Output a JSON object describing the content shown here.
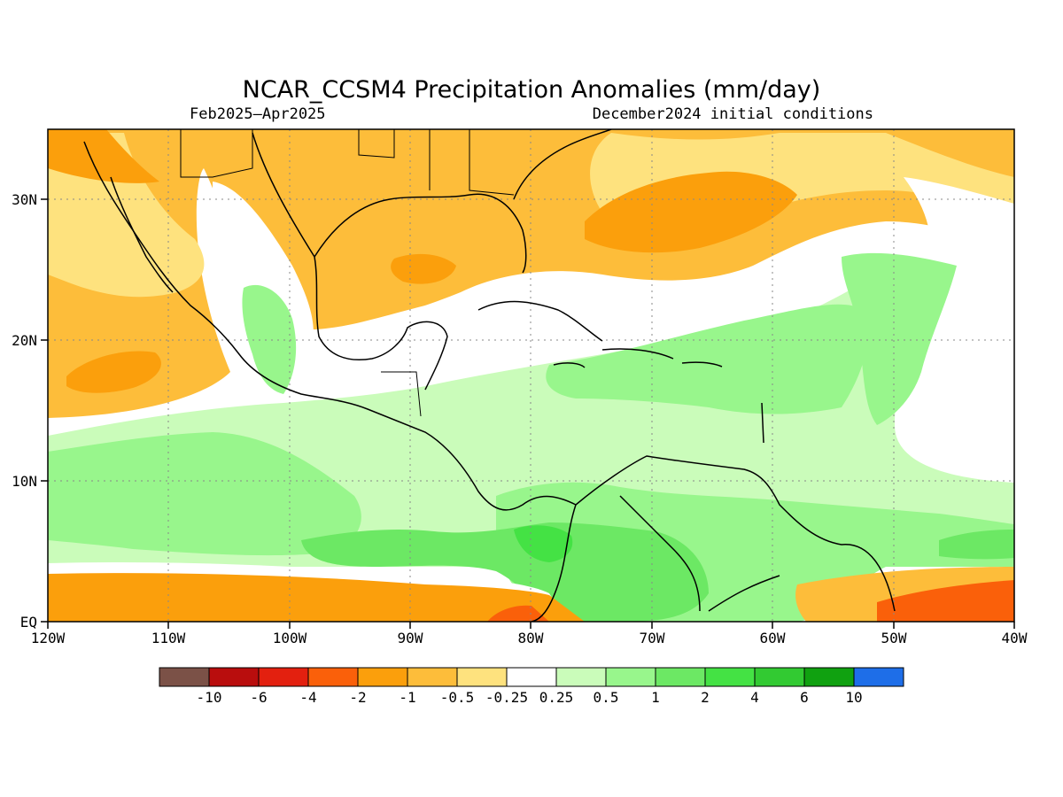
{
  "title": "NCAR_CCSM4 Precipitation Anomalies (mm/day)",
  "subtitle_left": "Feb2025–Apr2025",
  "subtitle_right": "December2024 initial conditions",
  "map": {
    "lon_labels": [
      "120W",
      "110W",
      "100W",
      "90W",
      "80W",
      "70W",
      "60W",
      "50W",
      "40W"
    ],
    "lat_labels": [
      "30N",
      "20N",
      "10N",
      "EQ"
    ],
    "lon_range": [
      -120,
      -40
    ],
    "lat_range": [
      0,
      35
    ],
    "grid": "dotted"
  },
  "colorbar": {
    "labels": [
      "-10",
      "-6",
      "-4",
      "-2",
      "-1",
      "-0.5",
      "-0.25",
      "0.25",
      "0.5",
      "1",
      "2",
      "4",
      "6",
      "10"
    ],
    "colors": [
      "#7b5147",
      "#b90d0d",
      "#e3200f",
      "#fa600a",
      "#fb9f0c",
      "#fdbd3a",
      "#fee27e",
      "#ffffff",
      "#cafcba",
      "#98f68c",
      "#6ce864",
      "#44e244",
      "#32ca32",
      "#10a110",
      "#1e6ee8"
    ]
  },
  "palette": {
    "neg_strong": "#fa600a",
    "neg_mod": "#fb9f0c",
    "neg_weak": "#fdbd3a",
    "neg_light": "#fee27e",
    "pos_light": "#cafcba",
    "pos_weak": "#98f68c",
    "pos_mod": "#6ce864",
    "pos_strong": "#44e244"
  }
}
